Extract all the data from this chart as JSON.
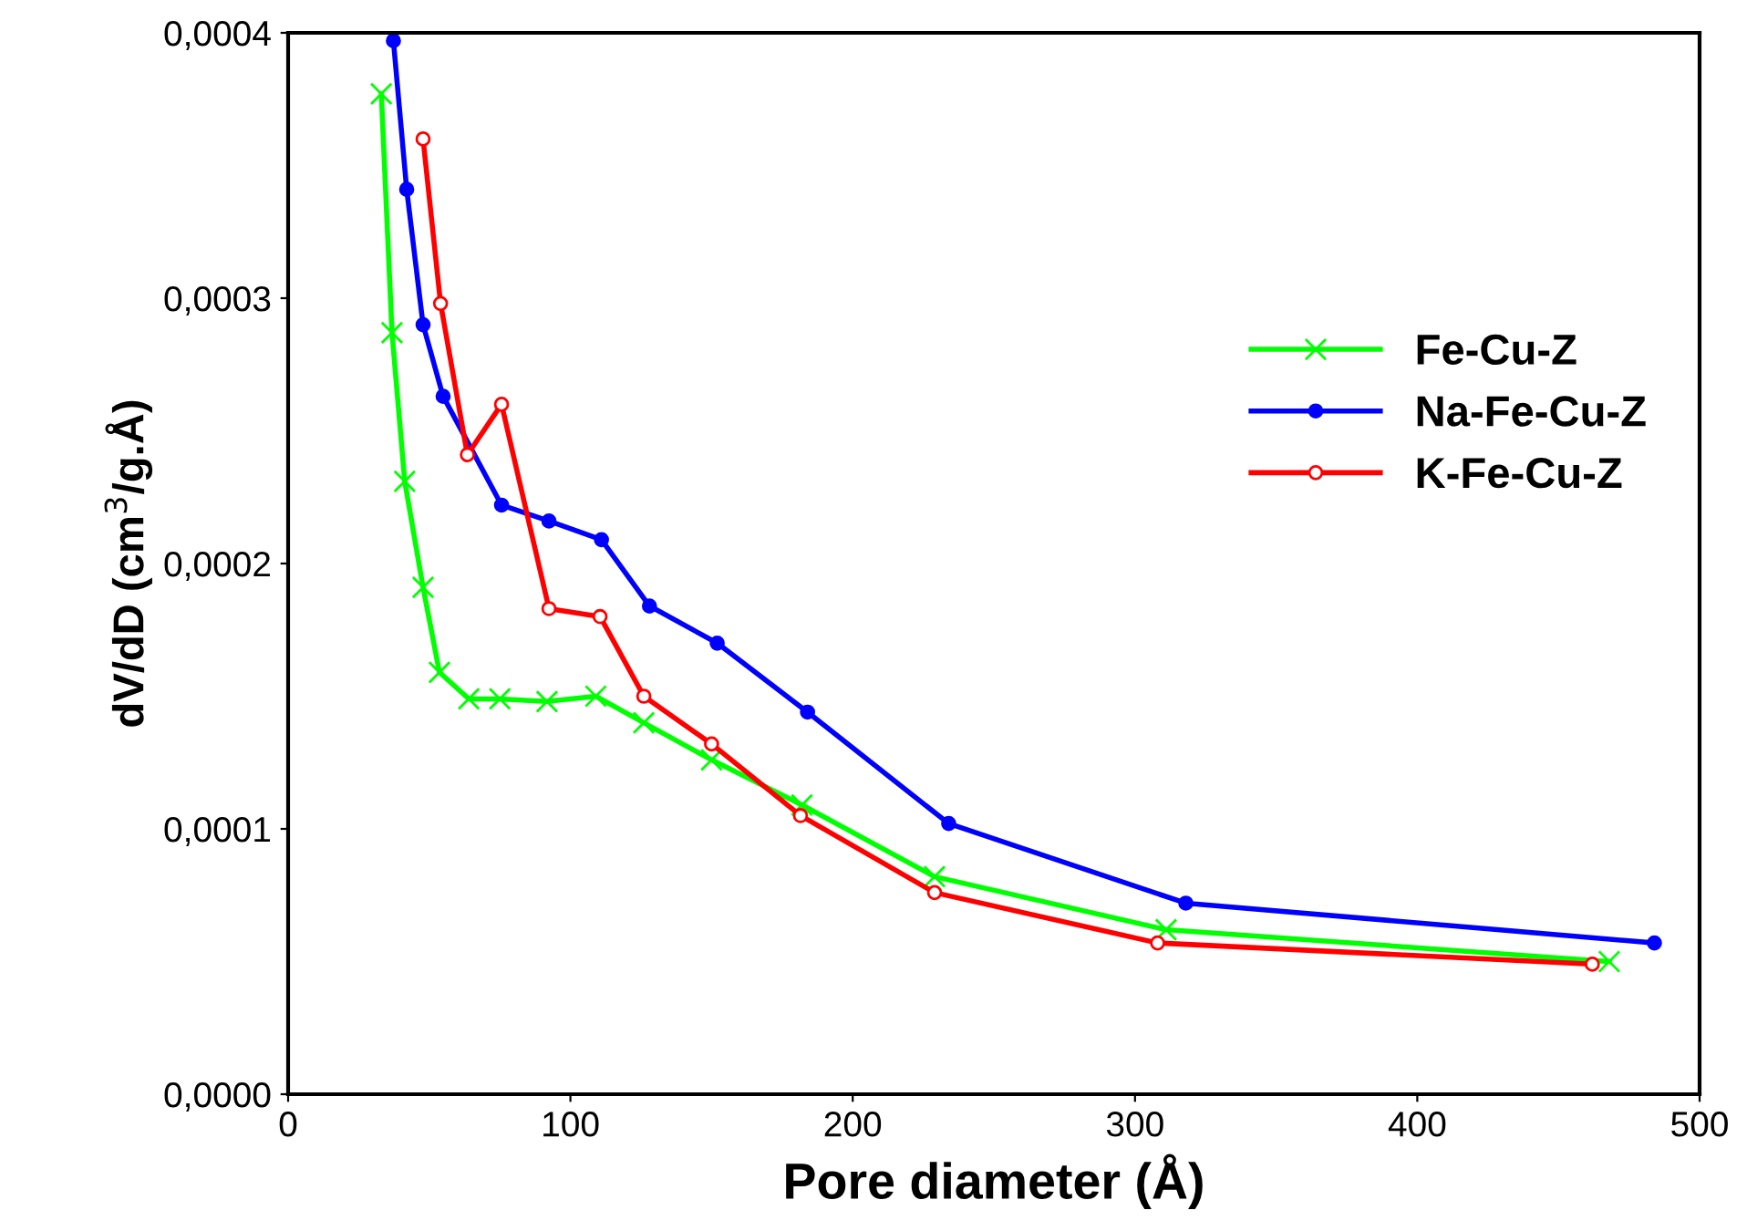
{
  "chart_data": {
    "type": "line",
    "xlabel": "Pore diameter (Å)",
    "ylabel": "dV/dD (cm$^{3}$/g.Å)",
    "xlim": [
      0,
      500
    ],
    "xticks": [
      0,
      100,
      200,
      300,
      400,
      500
    ],
    "ylim": [
      0,
      0.0004
    ],
    "yticks": [
      {
        "value": 0,
        "label": "0,0000"
      },
      {
        "value": 0.0001,
        "label": "0,0001"
      },
      {
        "value": 0.0002,
        "label": "0,0002"
      },
      {
        "value": 0.0003,
        "label": "0,0003"
      },
      {
        "value": 0.0004,
        "label": "0,0004"
      }
    ],
    "grid": false,
    "legend": "right",
    "line_style": "solid",
    "series": [
      {
        "name": "Fe-Cu-Z",
        "color": "#00ff00",
        "marker": "cross",
        "x": [
          33,
          36.8,
          41.3,
          47.8,
          53.6,
          64,
          75,
          91.7,
          109,
          126,
          150,
          182,
          229,
          311,
          468
        ],
        "values": [
          0.000377,
          0.000287,
          0.000231,
          0.000191,
          0.000159,
          0.000149,
          0.000149,
          0.000148,
          0.00015,
          0.00014,
          0.000126,
          0.000109,
          8.2e-05,
          6.2e-05,
          5e-05
        ]
      },
      {
        "name": "Na-Fe-Cu-Z",
        "color": "#0000ff",
        "marker": "circle",
        "x": [
          37.3,
          42,
          47.8,
          54.9,
          75.6,
          92.4,
          111,
          128,
          152,
          184,
          234,
          318,
          484
        ],
        "values": [
          0.000397,
          0.000341,
          0.00029,
          0.000263,
          0.000222,
          0.000216,
          0.000209,
          0.000184,
          0.00017,
          0.000144,
          0.000102,
          7.2e-05,
          5.7e-05
        ]
      },
      {
        "name": "K-Fe-Cu-Z",
        "color": "#ff0000",
        "marker": "circle_open",
        "x": [
          47.8,
          54,
          63.5,
          75.6,
          92.4,
          110.5,
          126,
          150,
          181.5,
          229,
          308,
          462
        ],
        "values": [
          0.00036,
          0.000298,
          0.000241,
          0.00026,
          0.000183,
          0.00018,
          0.00015,
          0.000132,
          0.000105,
          7.6e-05,
          5.7e-05,
          4.9e-05
        ]
      }
    ]
  }
}
